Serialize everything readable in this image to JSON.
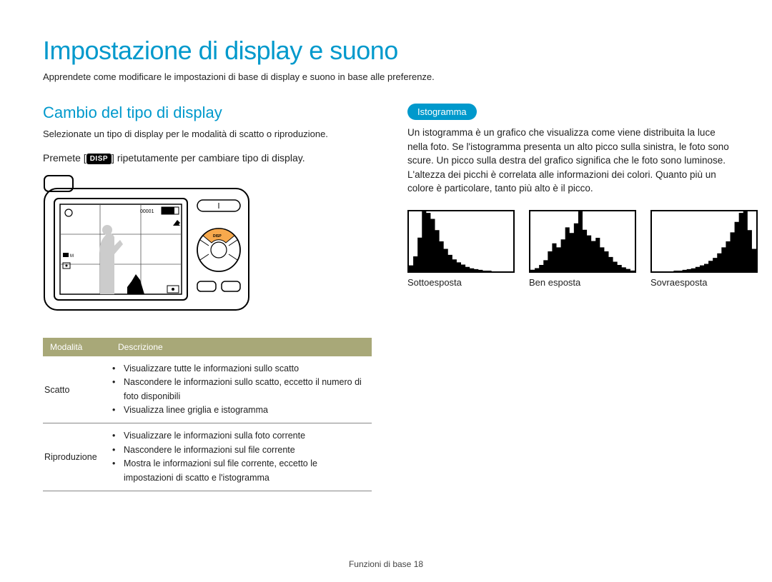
{
  "page": {
    "title": "Impostazione di display e suono",
    "intro": "Apprendete come modificare le impostazioni di base di display e suono in base alle preferenze.",
    "footer_label": "Funzioni di base",
    "footer_page": "18"
  },
  "left": {
    "heading": "Cambio del tipo di display",
    "sub": "Selezionate un tipo di display per le modalità di scatto o riproduzione.",
    "instruction_pre": "Premete [",
    "instruction_badge": "DISP",
    "instruction_post": "] ripetutamente per cambiare tipo di display.",
    "table": {
      "header": {
        "col1": "Modalità",
        "col2": "Descrizione"
      },
      "rows": [
        {
          "mode": "Scatto",
          "items": [
            "Visualizzare tutte le informazioni sullo scatto",
            "Nascondere le informazioni sullo scatto, eccetto il numero di foto disponibili",
            "Visualizza linee griglia e istogramma"
          ]
        },
        {
          "mode": "Riproduzione",
          "items": [
            "Visualizzare le informazioni sulla foto corrente",
            "Nascondere le informazioni sul file corrente",
            "Mostra le informazioni sul file corrente, eccetto le impostazioni di scatto e l'istogramma"
          ]
        }
      ]
    },
    "diagram": {
      "lcd_counter": "00001",
      "disp_label": "DISP",
      "highlight_color": "#f7a94d",
      "button_positions": [
        "top",
        "right",
        "bottom",
        "left",
        "center"
      ]
    }
  },
  "right": {
    "badge": "Istogramma",
    "text": "Un istogramma è un grafico che visualizza come viene distribuita la luce nella foto. Se l'istogramma presenta un alto picco sulla sinistra, le foto sono scure. Un picco sulla destra del grafico significa che le foto sono luminose. L'altezza dei picchi è correlata alle informazioni dei colori. Quanto più un colore è particolare, tanto più alto è il picco.",
    "histograms": [
      {
        "label": "Sottoesposta",
        "type": "histogram",
        "fill": "#000000",
        "values": [
          8,
          20,
          45,
          80,
          78,
          70,
          55,
          40,
          30,
          22,
          16,
          12,
          9,
          6,
          4,
          3,
          2,
          1,
          1,
          0,
          0,
          0,
          0,
          0
        ]
      },
      {
        "label": "Ben esposta",
        "type": "histogram",
        "fill": "#000000",
        "values": [
          2,
          4,
          8,
          14,
          25,
          35,
          30,
          40,
          55,
          48,
          60,
          75,
          52,
          45,
          38,
          42,
          30,
          25,
          18,
          12,
          8,
          5,
          3,
          1
        ]
      },
      {
        "label": "Sovraesposta",
        "type": "histogram",
        "fill": "#000000",
        "values": [
          0,
          0,
          0,
          0,
          0,
          1,
          1,
          2,
          3,
          4,
          6,
          8,
          10,
          14,
          18,
          24,
          32,
          40,
          52,
          66,
          78,
          80,
          55,
          30
        ]
      }
    ]
  },
  "colors": {
    "accent": "#0099cc",
    "table_header": "#a8a878",
    "text": "#222222",
    "highlight": "#f7a94d"
  }
}
